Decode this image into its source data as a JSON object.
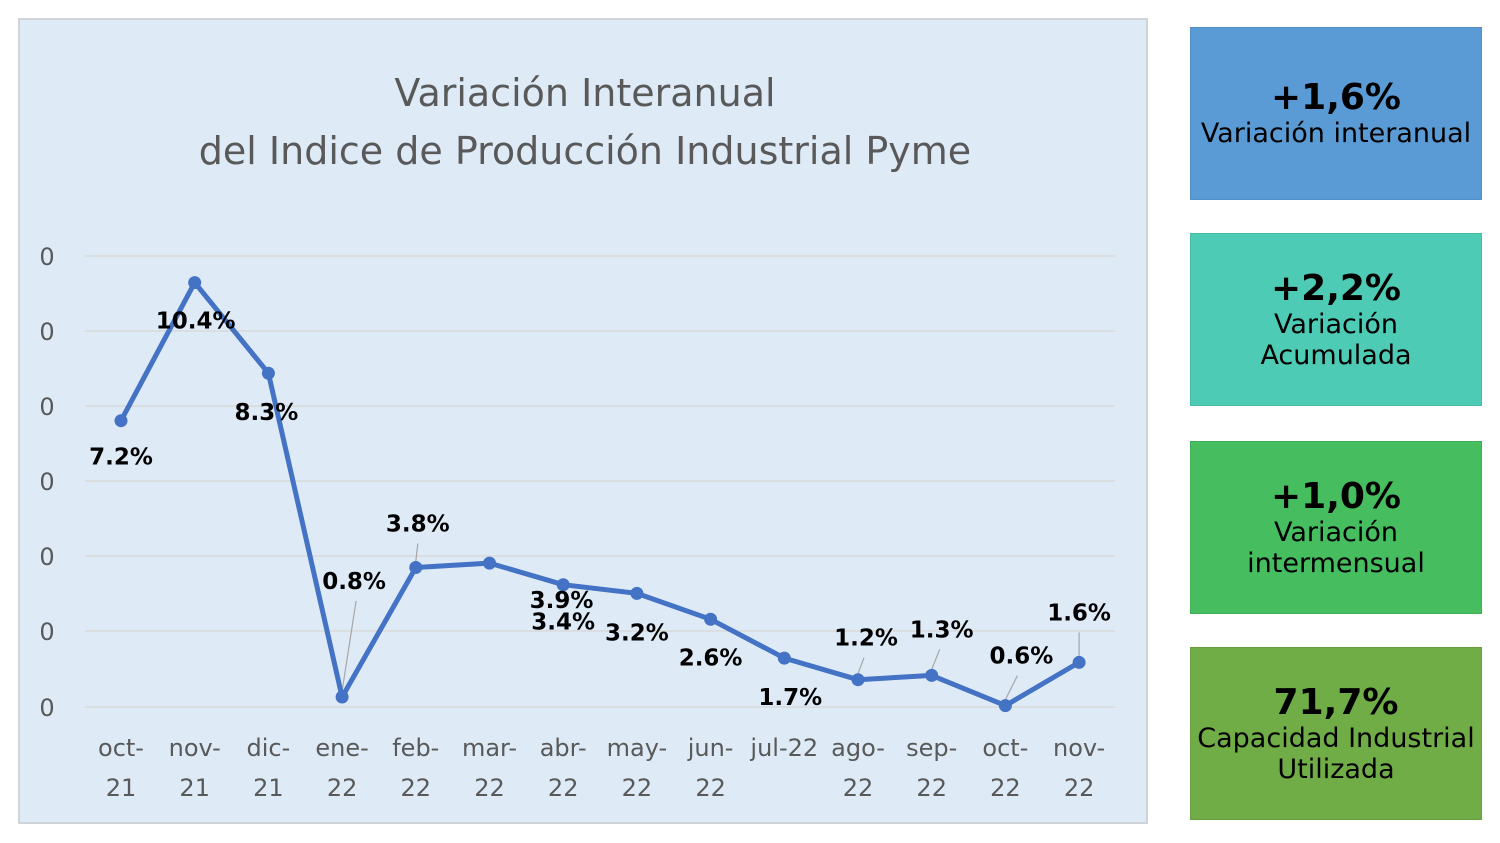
{
  "chart_data": {
    "type": "line",
    "title": [
      "Variación Interanual",
      "del Indice de Producción Industrial Pyme"
    ],
    "y_tick_labels": [
      "0",
      "0",
      "0",
      "0",
      "0",
      "0",
      "0"
    ],
    "categories": [
      [
        "oct-",
        "21"
      ],
      [
        "nov-",
        "21"
      ],
      [
        "dic-",
        "21"
      ],
      [
        "ene-",
        "22"
      ],
      [
        "feb-",
        "22"
      ],
      [
        "mar-",
        "22"
      ],
      [
        "abr-",
        "22"
      ],
      [
        "may-",
        "22"
      ],
      [
        "jun-",
        "22"
      ],
      [
        "jul-22",
        ""
      ],
      [
        "ago-",
        "22"
      ],
      [
        "sep-",
        "22"
      ],
      [
        "oct-",
        "22"
      ],
      [
        "nov-",
        "22"
      ]
    ],
    "values": [
      7.2,
      10.4,
      8.3,
      0.8,
      3.8,
      3.9,
      3.4,
      3.2,
      2.6,
      1.7,
      1.2,
      1.3,
      0.6,
      1.6
    ],
    "plotted_values": [
      7.2,
      10.4,
      8.3,
      0.8,
      3.8,
      3.9,
      3.4,
      3.2,
      2.6,
      1.7,
      1.2,
      1.3,
      0.6,
      1.6
    ],
    "data_labels": [
      "7.2%",
      "10.4%",
      "8.3%",
      "0.8%",
      "3.8%",
      "3.9%",
      "3.4%",
      "3.2%",
      "2.6%",
      "1.7%",
      "1.2%",
      "1.3%",
      "0.6%",
      "1.6%"
    ],
    "line_color": "#4472c4",
    "grid": true
  },
  "kpis": [
    {
      "value": "+1,6%",
      "label": [
        "Variación interanual"
      ],
      "color": "#5b9bd5"
    },
    {
      "value": "+2,2%",
      "label": [
        "Variación Acumulada"
      ],
      "color": "#4ecbb5"
    },
    {
      "value": "+1,0%",
      "label": [
        "Variación",
        "intermensual"
      ],
      "color": "#46bd5f"
    },
    {
      "value": "71,7%",
      "label": [
        "Capacidad Industrial",
        "Utilizada"
      ],
      "color": "#70ad47"
    }
  ]
}
